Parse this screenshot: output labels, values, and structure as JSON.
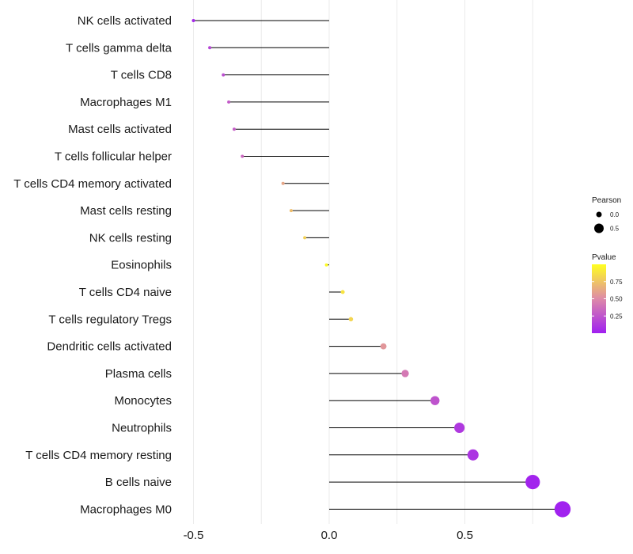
{
  "chart_data": {
    "type": "lollipop",
    "title": "",
    "xlabel": "",
    "ylabel": "",
    "xlim": [
      -0.5,
      0.85
    ],
    "xticks": [
      -0.5,
      0.0,
      0.5
    ],
    "xtick_labels": [
      "-0.5",
      "0.0",
      "0.5"
    ],
    "points": [
      {
        "cell": "NK cells activated",
        "pearson": -0.5,
        "pvalue": 0.04
      },
      {
        "cell": "T cells gamma delta",
        "pearson": -0.44,
        "pvalue": 0.18
      },
      {
        "cell": "T cells CD8",
        "pearson": -0.39,
        "pvalue": 0.22
      },
      {
        "cell": "Macrophages M1",
        "pearson": -0.37,
        "pvalue": 0.28
      },
      {
        "cell": "Mast cells activated",
        "pearson": -0.35,
        "pvalue": 0.29
      },
      {
        "cell": "T cells follicular helper",
        "pearson": -0.32,
        "pvalue": 0.34
      },
      {
        "cell": "T cells CD4 memory activated",
        "pearson": -0.17,
        "pvalue": 0.62
      },
      {
        "cell": "Mast cells resting",
        "pearson": -0.14,
        "pvalue": 0.72
      },
      {
        "cell": "NK cells resting",
        "pearson": -0.09,
        "pvalue": 0.8
      },
      {
        "cell": "Eosinophils",
        "pearson": -0.01,
        "pvalue": 0.98
      },
      {
        "cell": "T cells CD4 naive",
        "pearson": 0.05,
        "pvalue": 0.88
      },
      {
        "cell": "T cells regulatory  Tregs ",
        "pearson": 0.08,
        "pvalue": 0.82
      },
      {
        "cell": "Dendritic cells activated",
        "pearson": 0.2,
        "pvalue": 0.55
      },
      {
        "cell": "Plasma cells",
        "pearson": 0.28,
        "pvalue": 0.42
      },
      {
        "cell": "Monocytes",
        "pearson": 0.39,
        "pvalue": 0.24
      },
      {
        "cell": "Neutrophils",
        "pearson": 0.48,
        "pvalue": 0.12
      },
      {
        "cell": "T cells CD4 memory resting",
        "pearson": 0.53,
        "pvalue": 0.1
      },
      {
        "cell": "B cells naive",
        "pearson": 0.75,
        "pvalue": 0.02
      },
      {
        "cell": "Macrophages M0",
        "pearson": 0.86,
        "pvalue": 0.01
      }
    ],
    "legend": {
      "size_title": "Pearson",
      "size_items": [
        {
          "label": "0.0",
          "value": 0.0
        },
        {
          "label": "0.5",
          "value": 0.5
        }
      ],
      "color_title": "Pvalue",
      "color_ticks": [
        {
          "label": "0.75",
          "value": 0.75
        },
        {
          "label": "0.50",
          "value": 0.5
        },
        {
          "label": "0.25",
          "value": 0.25
        }
      ],
      "color_low": "#a020f0",
      "color_mid": "#de8aa8",
      "color_high": "#ffff20",
      "pvalue_range": [
        0.0,
        1.0
      ]
    },
    "colors": {
      "grid": "#ebebeb",
      "segment": "#000000",
      "background": "#ffffff"
    }
  }
}
